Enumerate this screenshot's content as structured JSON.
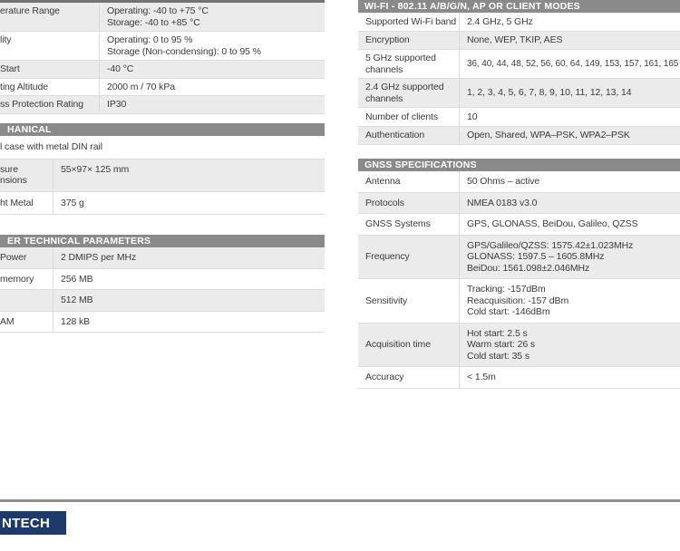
{
  "colors": {
    "section_header_bg": "#8a8a8a",
    "section_header_text": "#ffffff",
    "row_shaded_bg": "#ebebeb",
    "body_text": "#3a3a3a",
    "footer_rule": "#8f8f8f",
    "logo_bg": "#1c3a6b"
  },
  "left": {
    "env_table": {
      "rows": [
        {
          "label": "erature Range",
          "value_lines": [
            "Operating: -40 to +75 °C",
            "Storage:  -40 to +85 °C"
          ]
        },
        {
          "label": "lity",
          "value_lines": [
            "Operating: 0 to 95 %",
            "Storage (Non-condensing):  0 to 95 %"
          ]
        },
        {
          "label": "Start",
          "value_lines": [
            "-40 °C"
          ]
        },
        {
          "label": "ting Altitude",
          "value_lines": [
            "2000 m / 70 kPa"
          ]
        },
        {
          "label": "ss Protection Rating",
          "value_lines": [
            "IP30"
          ]
        }
      ]
    },
    "mechanical": {
      "header": "HANICAL",
      "merged_row": "l case with metal DIN rail",
      "rows": [
        {
          "label_lines": [
            "sure",
            "nsions"
          ],
          "value_lines": [
            "55×97× 125 mm"
          ]
        },
        {
          "label_lines": [
            "ht Metal"
          ],
          "value_lines": [
            "375 g"
          ]
        }
      ]
    },
    "other_technical": {
      "header": "ER TECHNICAL PARAMETERS",
      "rows": [
        {
          "label": "Power",
          "value": "2 DMIPS per MHz"
        },
        {
          "label": "memory",
          "value": "256 MB"
        },
        {
          "label": "",
          "value": "512 MB"
        },
        {
          "label": "AM",
          "value": "128 kB"
        }
      ]
    }
  },
  "right": {
    "wifi": {
      "header": "WI-FI - 802.11 A/B/G/N, AP OR CLIENT MODES",
      "rows": [
        {
          "label_lines": [
            "Supported Wi-Fi band"
          ],
          "value_lines": [
            "2.4 GHz, 5 GHz"
          ]
        },
        {
          "label_lines": [
            "Encryption"
          ],
          "value_lines": [
            "None, WEP, TKIP, AES"
          ]
        },
        {
          "label_lines": [
            "5 GHz supported",
            "channels"
          ],
          "value_lines": [
            "36, 40, 44, 48, 52, 56, 60, 64, 149, 153, 157, 161, 165"
          ]
        },
        {
          "label_lines": [
            "2.4 GHz supported",
            "channels"
          ],
          "value_lines": [
            "1, 2, 3, 4, 5, 6, 7, 8, 9, 10, 11, 12, 13, 14"
          ]
        },
        {
          "label_lines": [
            "Number of clients"
          ],
          "value_lines": [
            "10"
          ]
        },
        {
          "label_lines": [
            "Authentication"
          ],
          "value_lines": [
            "Open, Shared, WPA–PSK, WPA2–PSK"
          ]
        }
      ]
    },
    "gnss": {
      "header": "GNSS SPECIFICATIONS",
      "rows": [
        {
          "label_lines": [
            "Antenna"
          ],
          "value_lines": [
            "50 Ohms – active"
          ]
        },
        {
          "label_lines": [
            "Protocols"
          ],
          "value_lines": [
            "NMEA 0183 v3.0"
          ]
        },
        {
          "label_lines": [
            "GNSS Systems"
          ],
          "value_lines": [
            "GPS, GLONASS, BeiDou, Galileo, QZSS"
          ]
        },
        {
          "label_lines": [
            "Frequency"
          ],
          "value_lines": [
            "GPS/Galileo/QZSS: 1575.42±1.023MHz",
            "GLONASS: 1597.5 – 1605.8MHz",
            "BeiDou: 1561.098±2.046MHz"
          ]
        },
        {
          "label_lines": [
            "Sensitivity"
          ],
          "value_lines": [
            "Tracking: -157dBm",
            "Reacquisition: -157 dBm",
            "Cold start: -146dBm"
          ]
        },
        {
          "label_lines": [
            "Acquisition time"
          ],
          "value_lines": [
            "Hot start: 2.5 s",
            "Warm start: 26 s",
            "Cold start: 35 s"
          ]
        },
        {
          "label_lines": [
            "Accuracy"
          ],
          "value_lines": [
            "< 1.5m"
          ]
        }
      ]
    }
  },
  "footer": {
    "logo_text": "NTECH"
  }
}
